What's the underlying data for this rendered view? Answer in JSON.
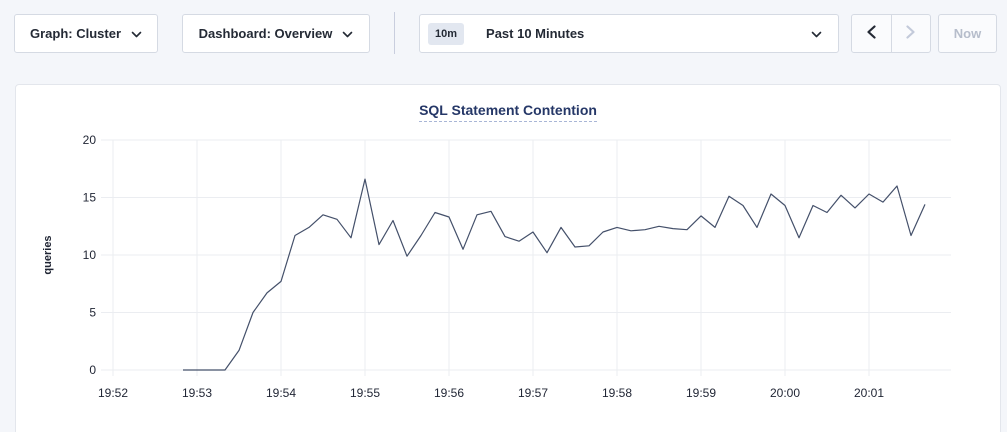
{
  "topbar": {
    "graph_dropdown_label": "Graph: Cluster",
    "dashboard_dropdown_label": "Dashboard: Overview",
    "time_badge": "10m",
    "time_label": "Past 10 Minutes",
    "now_label": "Now"
  },
  "colors": {
    "page_bg": "#f4f6fa",
    "control_text": "#242a35",
    "disabled_text": "#b6bdcb",
    "badge_bg": "#e2e7f0",
    "title_color": "#253767",
    "grid": "#ebedf1",
    "line_color": "#44506a"
  },
  "chart_data": {
    "type": "line",
    "title": "SQL Statement Contention",
    "xlabel": "",
    "ylabel": "queries",
    "ylim": [
      0,
      20
    ],
    "yticks": [
      0,
      5,
      10,
      15,
      20
    ],
    "x_tick_labels": [
      "19:52",
      "19:53",
      "19:54",
      "19:55",
      "19:56",
      "19:57",
      "19:58",
      "19:59",
      "20:00",
      "20:01"
    ],
    "grid": true,
    "legend_position": "none",
    "line_color": "#44506a",
    "series": [
      {
        "name": "queries",
        "start": "19:52:50",
        "interval_seconds": 10,
        "values": [
          0,
          0,
          0,
          0,
          1.7,
          5.0,
          6.7,
          7.7,
          11.7,
          12.4,
          13.5,
          13.1,
          11.5,
          16.6,
          10.9,
          13.0,
          9.9,
          11.7,
          13.7,
          13.3,
          10.5,
          13.5,
          13.8,
          11.6,
          11.2,
          12.0,
          10.2,
          12.4,
          10.7,
          10.8,
          12.0,
          12.4,
          12.1,
          12.2,
          12.5,
          12.3,
          12.2,
          13.4,
          12.4,
          15.1,
          14.3,
          12.4,
          15.3,
          14.3,
          11.5,
          14.3,
          13.7,
          15.2,
          14.1,
          15.3,
          14.6,
          16.0,
          11.7,
          14.4
        ]
      }
    ]
  }
}
